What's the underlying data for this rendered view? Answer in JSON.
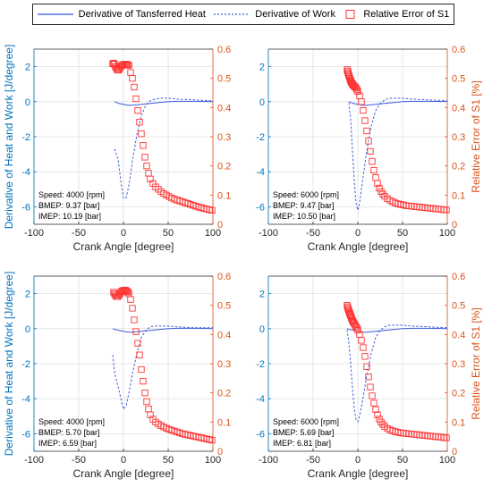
{
  "colors": {
    "heat": "#3b5bdb",
    "work": "#3b5bdb",
    "error": "#ff3333",
    "left_axis": "#0072bd",
    "right_axis": "#d95319",
    "grid": "#e0e0e0"
  },
  "legend": {
    "heat_label": "Derivative of Tansferred Heat",
    "work_label": "Derivative of Work",
    "error_label": "Relative Error of S1"
  },
  "chart_data": [
    {
      "type": "line",
      "xlabel": "Crank Angle [degree]",
      "ylabel_left": "Derivative of Heat and Work [J/degree]",
      "ylabel_right": "",
      "xlim": [
        -100,
        100
      ],
      "ylim_left": [
        -7,
        3
      ],
      "ylim_right": [
        0,
        0.6
      ],
      "xticks": [
        "-100",
        "-50",
        "0",
        "50",
        "100"
      ],
      "yticks_left": [
        "-6",
        "-4",
        "-2",
        "0",
        "2"
      ],
      "yticks_right": [
        "0",
        "0.1",
        "0.2",
        "0.3",
        "0.4",
        "0.5",
        "0.6"
      ],
      "annotation": [
        "Speed: 4000 [rpm]",
        "BMEP: 9.37 [bar]",
        "IMEP:  10.19 [bar]"
      ],
      "series": [
        {
          "name": "Derivative of Tansferred Heat",
          "axis": "left",
          "style": "solid",
          "x": [
            -10,
            -5,
            0,
            5,
            10,
            15,
            20,
            30,
            40,
            50,
            60,
            80,
            100
          ],
          "y": [
            0.0,
            -0.1,
            -0.15,
            -0.2,
            -0.2,
            -0.18,
            -0.15,
            -0.1,
            -0.05,
            0.0,
            0.02,
            0.02,
            0.0
          ]
        },
        {
          "name": "Derivative of Work",
          "axis": "left",
          "style": "dashed",
          "x": [
            -10,
            -8,
            -6,
            -3,
            0,
            3,
            6,
            10,
            15,
            20,
            25,
            30,
            35,
            40,
            50,
            60,
            80,
            100
          ],
          "y": [
            -2.7,
            -3.0,
            -3.3,
            -4.5,
            -5.5,
            -5.5,
            -4.8,
            -3.4,
            -1.9,
            -0.8,
            -0.2,
            0.05,
            0.15,
            0.2,
            0.2,
            0.15,
            0.1,
            0.05
          ]
        },
        {
          "name": "Relative Error of S1",
          "axis": "right",
          "style": "square",
          "x": [
            -12,
            -11,
            -10,
            -9,
            -8,
            -7,
            -6,
            -5,
            -4,
            -3,
            -2,
            -1,
            0,
            1,
            2,
            3,
            4,
            5,
            6,
            8,
            10,
            12,
            14,
            16,
            18,
            20,
            22,
            24,
            26,
            28,
            30,
            33,
            36,
            39,
            42,
            45,
            48,
            51,
            54,
            57,
            60,
            63,
            66,
            69,
            72,
            75,
            78,
            81,
            84,
            87,
            90,
            93,
            96,
            99
          ],
          "y": [
            0.55,
            0.552,
            0.548,
            0.54,
            0.535,
            0.53,
            0.528,
            0.53,
            0.535,
            0.54,
            0.545,
            0.545,
            0.547,
            0.548,
            0.548,
            0.548,
            0.548,
            0.545,
            0.545,
            0.52,
            0.5,
            0.47,
            0.43,
            0.39,
            0.35,
            0.31,
            0.27,
            0.23,
            0.2,
            0.175,
            0.155,
            0.14,
            0.128,
            0.12,
            0.112,
            0.105,
            0.1,
            0.095,
            0.09,
            0.086,
            0.083,
            0.08,
            0.077,
            0.074,
            0.071,
            0.068,
            0.065,
            0.062,
            0.059,
            0.057,
            0.054,
            0.052,
            0.05,
            0.048
          ]
        }
      ]
    },
    {
      "type": "line",
      "xlabel": "Crank Angle [degree]",
      "ylabel_left": "",
      "ylabel_right": "Relative Error of S1 [%]",
      "xlim": [
        -100,
        100
      ],
      "ylim_left": [
        -7,
        3
      ],
      "ylim_right": [
        0,
        0.6
      ],
      "xticks": [
        "-100",
        "-50",
        "0",
        "50",
        "100"
      ],
      "yticks_left": [
        "-6",
        "-4",
        "-2",
        "0",
        "2"
      ],
      "yticks_right": [
        "0",
        "0.1",
        "0.2",
        "0.3",
        "0.4",
        "0.5",
        "0.6"
      ],
      "annotation": [
        "Speed: 6000 [rpm]",
        "BMEP: 9.47 [bar]",
        "IMEP:  10.50 [bar]"
      ],
      "series": [
        {
          "name": "Derivative of Tansferred Heat",
          "axis": "left",
          "style": "solid",
          "x": [
            -10,
            -5,
            0,
            5,
            10,
            15,
            20,
            30,
            40,
            50,
            60,
            80,
            100
          ],
          "y": [
            0.0,
            -0.1,
            -0.15,
            -0.2,
            -0.2,
            -0.18,
            -0.15,
            -0.1,
            -0.05,
            0.0,
            0.02,
            0.02,
            0.0
          ]
        },
        {
          "name": "Derivative of Work",
          "axis": "left",
          "style": "dashed",
          "x": [
            -10,
            -8,
            -6,
            -4,
            -2,
            0,
            2,
            5,
            10,
            15,
            20,
            25,
            30,
            35,
            40,
            50,
            60,
            80,
            100
          ],
          "y": [
            -0.05,
            -1.0,
            -2.8,
            -4.5,
            -5.8,
            -6.2,
            -5.8,
            -4.6,
            -2.8,
            -1.4,
            -0.5,
            -0.1,
            0.1,
            0.2,
            0.2,
            0.2,
            0.15,
            0.1,
            0.05
          ]
        },
        {
          "name": "Relative Error of S1",
          "axis": "right",
          "style": "square",
          "x": [
            -12,
            -11.5,
            -11,
            -10.5,
            -10,
            -9.5,
            -9,
            -8.5,
            -8,
            -7.5,
            -7,
            -6.5,
            -6,
            -5.5,
            -5,
            -4,
            -3,
            -2,
            -1,
            0,
            2,
            4,
            6,
            8,
            10,
            12,
            14,
            16,
            18,
            20,
            22,
            24,
            26,
            28,
            30,
            33,
            36,
            39,
            42,
            45,
            48,
            51,
            54,
            57,
            60,
            63,
            66,
            69,
            72,
            75,
            78,
            81,
            84,
            87,
            90,
            93,
            96,
            99
          ],
          "y": [
            0.53,
            0.525,
            0.52,
            0.515,
            0.51,
            0.505,
            0.5,
            0.496,
            0.492,
            0.488,
            0.485,
            0.482,
            0.48,
            0.478,
            0.476,
            0.473,
            0.47,
            0.467,
            0.462,
            0.455,
            0.44,
            0.42,
            0.39,
            0.355,
            0.32,
            0.285,
            0.25,
            0.215,
            0.185,
            0.16,
            0.14,
            0.124,
            0.112,
            0.103,
            0.096,
            0.088,
            0.082,
            0.077,
            0.073,
            0.07,
            0.068,
            0.066,
            0.064,
            0.063,
            0.062,
            0.061,
            0.06,
            0.059,
            0.058,
            0.057,
            0.056,
            0.055,
            0.054,
            0.053,
            0.052,
            0.051,
            0.05,
            0.049
          ]
        }
      ]
    },
    {
      "type": "line",
      "xlabel": "Crank Angle [degree]",
      "ylabel_left": "Derivative of Heat and Work [J/degree]",
      "ylabel_right": "",
      "xlim": [
        -100,
        100
      ],
      "ylim_left": [
        -7,
        3
      ],
      "ylim_right": [
        0,
        0.6
      ],
      "xticks": [
        "-100",
        "-50",
        "0",
        "50",
        "100"
      ],
      "yticks_left": [
        "-6",
        "-4",
        "-2",
        "0",
        "2"
      ],
      "yticks_right": [
        "0",
        "0.1",
        "0.2",
        "0.3",
        "0.4",
        "0.5",
        "0.6"
      ],
      "annotation": [
        "Speed: 4000 [rpm]",
        "BMEP: 5.70 [bar]",
        "IMEP:  6.59 [bar]"
      ],
      "series": [
        {
          "name": "Derivative of Tansferred Heat",
          "axis": "left",
          "style": "solid",
          "x": [
            -12,
            -5,
            0,
            5,
            10,
            15,
            20,
            30,
            40,
            50,
            60,
            80,
            100
          ],
          "y": [
            0.0,
            -0.1,
            -0.15,
            -0.2,
            -0.2,
            -0.18,
            -0.15,
            -0.1,
            -0.05,
            0.0,
            0.02,
            0.02,
            0.0
          ]
        },
        {
          "name": "Derivative of Work",
          "axis": "left",
          "style": "dashed",
          "x": [
            -12,
            -10,
            -8,
            -5,
            -2,
            0,
            3,
            6,
            10,
            15,
            20,
            25,
            30,
            35,
            40,
            50,
            60,
            80,
            100
          ],
          "y": [
            -1.5,
            -2.5,
            -2.9,
            -3.5,
            -4.2,
            -4.6,
            -4.4,
            -3.7,
            -2.6,
            -1.4,
            -0.5,
            -0.1,
            0.1,
            0.15,
            0.15,
            0.15,
            0.1,
            0.05,
            0.05
          ]
        },
        {
          "name": "Relative Error of S1",
          "axis": "right",
          "style": "square",
          "x": [
            -11,
            -10,
            -9,
            -8,
            -7,
            -6,
            -5,
            -4,
            -3,
            -2,
            -1,
            0,
            1,
            2,
            3,
            4,
            5,
            6,
            8,
            10,
            12,
            14,
            16,
            18,
            20,
            22,
            24,
            26,
            28,
            30,
            33,
            36,
            39,
            42,
            45,
            48,
            51,
            54,
            57,
            60,
            63,
            66,
            69,
            72,
            75,
            78,
            81,
            84,
            87,
            90,
            93,
            96,
            99
          ],
          "y": [
            0.545,
            0.54,
            0.535,
            0.53,
            0.53,
            0.53,
            0.535,
            0.54,
            0.545,
            0.548,
            0.55,
            0.55,
            0.552,
            0.552,
            0.55,
            0.548,
            0.545,
            0.54,
            0.52,
            0.49,
            0.45,
            0.41,
            0.37,
            0.33,
            0.28,
            0.24,
            0.2,
            0.17,
            0.145,
            0.125,
            0.11,
            0.1,
            0.093,
            0.088,
            0.083,
            0.079,
            0.075,
            0.072,
            0.069,
            0.066,
            0.063,
            0.06,
            0.058,
            0.056,
            0.054,
            0.052,
            0.05,
            0.048,
            0.046,
            0.044,
            0.042,
            0.04,
            0.038
          ]
        }
      ]
    },
    {
      "type": "line",
      "xlabel": "Crank Angle [degree]",
      "ylabel_left": "",
      "ylabel_right": "Relative Error of S1 [%]",
      "xlim": [
        -100,
        100
      ],
      "ylim_left": [
        -7,
        3
      ],
      "ylim_right": [
        0,
        0.6
      ],
      "xticks": [
        "-100",
        "-50",
        "0",
        "50",
        "100"
      ],
      "yticks_left": [
        "-6",
        "-4",
        "-2",
        "0",
        "2"
      ],
      "yticks_right": [
        "0",
        "0.1",
        "0.2",
        "0.3",
        "0.4",
        "0.5",
        "0.6"
      ],
      "annotation": [
        "Speed: 6000 [rpm]",
        "BMEP: 5.69 [bar]",
        "IMEP:  6.81 [bar]"
      ],
      "series": [
        {
          "name": "Derivative of Tansferred Heat",
          "axis": "left",
          "style": "solid",
          "x": [
            -12,
            -5,
            0,
            5,
            10,
            15,
            20,
            30,
            40,
            50,
            60,
            80,
            100
          ],
          "y": [
            0.0,
            -0.1,
            -0.15,
            -0.2,
            -0.2,
            -0.18,
            -0.15,
            -0.1,
            -0.05,
            0.0,
            0.02,
            0.02,
            0.0
          ]
        },
        {
          "name": "Derivative of Work",
          "axis": "left",
          "style": "dashed",
          "x": [
            -12,
            -10,
            -8,
            -6,
            -4,
            -2,
            0,
            2,
            5,
            10,
            15,
            20,
            25,
            30,
            35,
            40,
            50,
            60,
            80,
            100
          ],
          "y": [
            -0.05,
            -0.8,
            -2.0,
            -3.4,
            -4.5,
            -5.2,
            -5.3,
            -5.0,
            -4.2,
            -2.7,
            -1.4,
            -0.5,
            -0.1,
            0.1,
            0.2,
            0.2,
            0.2,
            0.15,
            0.1,
            0.05
          ]
        },
        {
          "name": "Relative Error of S1",
          "axis": "right",
          "style": "square",
          "x": [
            -12,
            -11.5,
            -11,
            -10.5,
            -10,
            -9.5,
            -9,
            -8.5,
            -8,
            -7.5,
            -7,
            -6.5,
            -6,
            -5.5,
            -5,
            -4,
            -3,
            -2,
            -1,
            0,
            2,
            4,
            6,
            8,
            10,
            12,
            14,
            16,
            18,
            20,
            22,
            24,
            26,
            28,
            30,
            33,
            36,
            39,
            42,
            45,
            48,
            51,
            54,
            57,
            60,
            63,
            66,
            69,
            72,
            75,
            78,
            81,
            84,
            87,
            90,
            93,
            96,
            99
          ],
          "y": [
            0.5,
            0.495,
            0.49,
            0.485,
            0.48,
            0.476,
            0.472,
            0.468,
            0.464,
            0.46,
            0.456,
            0.452,
            0.448,
            0.445,
            0.442,
            0.437,
            0.432,
            0.427,
            0.422,
            0.415,
            0.4,
            0.38,
            0.355,
            0.325,
            0.29,
            0.255,
            0.22,
            0.19,
            0.165,
            0.143,
            0.125,
            0.11,
            0.1,
            0.092,
            0.085,
            0.078,
            0.073,
            0.07,
            0.067,
            0.065,
            0.063,
            0.062,
            0.061,
            0.06,
            0.059,
            0.058,
            0.057,
            0.056,
            0.055,
            0.054,
            0.053,
            0.052,
            0.051,
            0.05,
            0.049,
            0.048,
            0.047,
            0.046
          ]
        }
      ]
    }
  ]
}
